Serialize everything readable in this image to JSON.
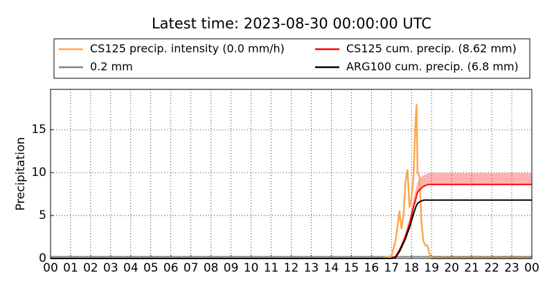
{
  "chart_data": {
    "type": "line",
    "title": "Latest time: 2023-08-30 00:00:00 UTC",
    "y_label": "Precipitation",
    "x": [
      0,
      16,
      16.5,
      17,
      17.2,
      17.4,
      17.5,
      17.6,
      17.7,
      17.8,
      17.9,
      18,
      18.1,
      18.2,
      18.25,
      18.3,
      18.4,
      18.5,
      18.6,
      18.7,
      18.8,
      18.9,
      19,
      19.5,
      20,
      24
    ],
    "series": [
      {
        "name": "CS125 precip. intensity (0.0 mm/h)",
        "color": "#ffa64d",
        "width": 2.5,
        "values": [
          0,
          0,
          0,
          0.3,
          2,
          5.5,
          3.5,
          5,
          9,
          10.3,
          6,
          7,
          9.5,
          16,
          17.9,
          10,
          9.5,
          4,
          2,
          1.5,
          1.5,
          0.5,
          0,
          0,
          0,
          0
        ]
      },
      {
        "name": "CS125 cum. precip. (8.62 mm)",
        "color": "#ff0000",
        "width": 2,
        "values": [
          0,
          0,
          0,
          0,
          0.2,
          1,
          1.5,
          2,
          2.6,
          3.3,
          4,
          5,
          6,
          6.8,
          7.3,
          7.7,
          8,
          8.2,
          8.4,
          8.5,
          8.6,
          8.62,
          8.62,
          8.62,
          8.62,
          8.62
        ],
        "band": {
          "upper": [
            0,
            0,
            0,
            0,
            0.3,
            1.2,
            1.8,
            2.4,
            3.1,
            3.9,
            4.7,
            5.8,
            7,
            7.9,
            8.4,
            8.9,
            9.2,
            9.5,
            9.7,
            9.8,
            9.9,
            9.95,
            9.95,
            9.95,
            9.95,
            9.95
          ],
          "lower": [
            0,
            0,
            0,
            0,
            0.2,
            1,
            1.5,
            2,
            2.6,
            3.3,
            4,
            5,
            6,
            6.8,
            7.3,
            7.7,
            8,
            8.2,
            8.4,
            8.5,
            8.6,
            8.62,
            8.62,
            8.62,
            8.62,
            8.62
          ]
        }
      },
      {
        "name": "0.2 mm",
        "color": "#808080",
        "width": 2,
        "values": [
          0.2,
          0.2,
          0.2,
          0.2,
          0.2,
          0.2,
          0.2,
          0.2,
          0.2,
          0.2,
          0.2,
          0.2,
          0.2,
          0.2,
          0.2,
          0.2,
          0.2,
          0.2,
          0.2,
          0.2,
          0.2,
          0.2,
          0.2,
          0.2,
          0.2,
          0.2
        ]
      },
      {
        "name": "ARG100 cum. precip. (6.8 mm)",
        "color": "#000000",
        "width": 2,
        "values": [
          0,
          0,
          0,
          0,
          0.1,
          0.8,
          1.3,
          1.8,
          2.3,
          3,
          3.6,
          4.4,
          5.2,
          5.9,
          6.2,
          6.4,
          6.6,
          6.7,
          6.8,
          6.8,
          6.8,
          6.8,
          6.8,
          6.8,
          6.8,
          6.8
        ]
      }
    ],
    "xlim": [
      0,
      24
    ],
    "xticks": [
      {
        "value": 0,
        "label": "00"
      },
      {
        "value": 1,
        "label": "01"
      },
      {
        "value": 2,
        "label": "02"
      },
      {
        "value": 3,
        "label": "03"
      },
      {
        "value": 4,
        "label": "04"
      },
      {
        "value": 5,
        "label": "05"
      },
      {
        "value": 6,
        "label": "06"
      },
      {
        "value": 7,
        "label": "07"
      },
      {
        "value": 8,
        "label": "08"
      },
      {
        "value": 9,
        "label": "09"
      },
      {
        "value": 10,
        "label": "10"
      },
      {
        "value": 11,
        "label": "11"
      },
      {
        "value": 12,
        "label": "12"
      },
      {
        "value": 13,
        "label": "13"
      },
      {
        "value": 14,
        "label": "14"
      },
      {
        "value": 15,
        "label": "15"
      },
      {
        "value": 16,
        "label": "16"
      },
      {
        "value": 17,
        "label": "17"
      },
      {
        "value": 18,
        "label": "18"
      },
      {
        "value": 19,
        "label": "19"
      },
      {
        "value": 20,
        "label": "20"
      },
      {
        "value": 21,
        "label": "21"
      },
      {
        "value": 22,
        "label": "22"
      },
      {
        "value": 23,
        "label": "23"
      },
      {
        "value": 24,
        "label": "00"
      }
    ],
    "ylim": [
      0,
      19.7
    ],
    "yticks": [
      0,
      5,
      10,
      15
    ],
    "grid": true,
    "legend": "top"
  }
}
